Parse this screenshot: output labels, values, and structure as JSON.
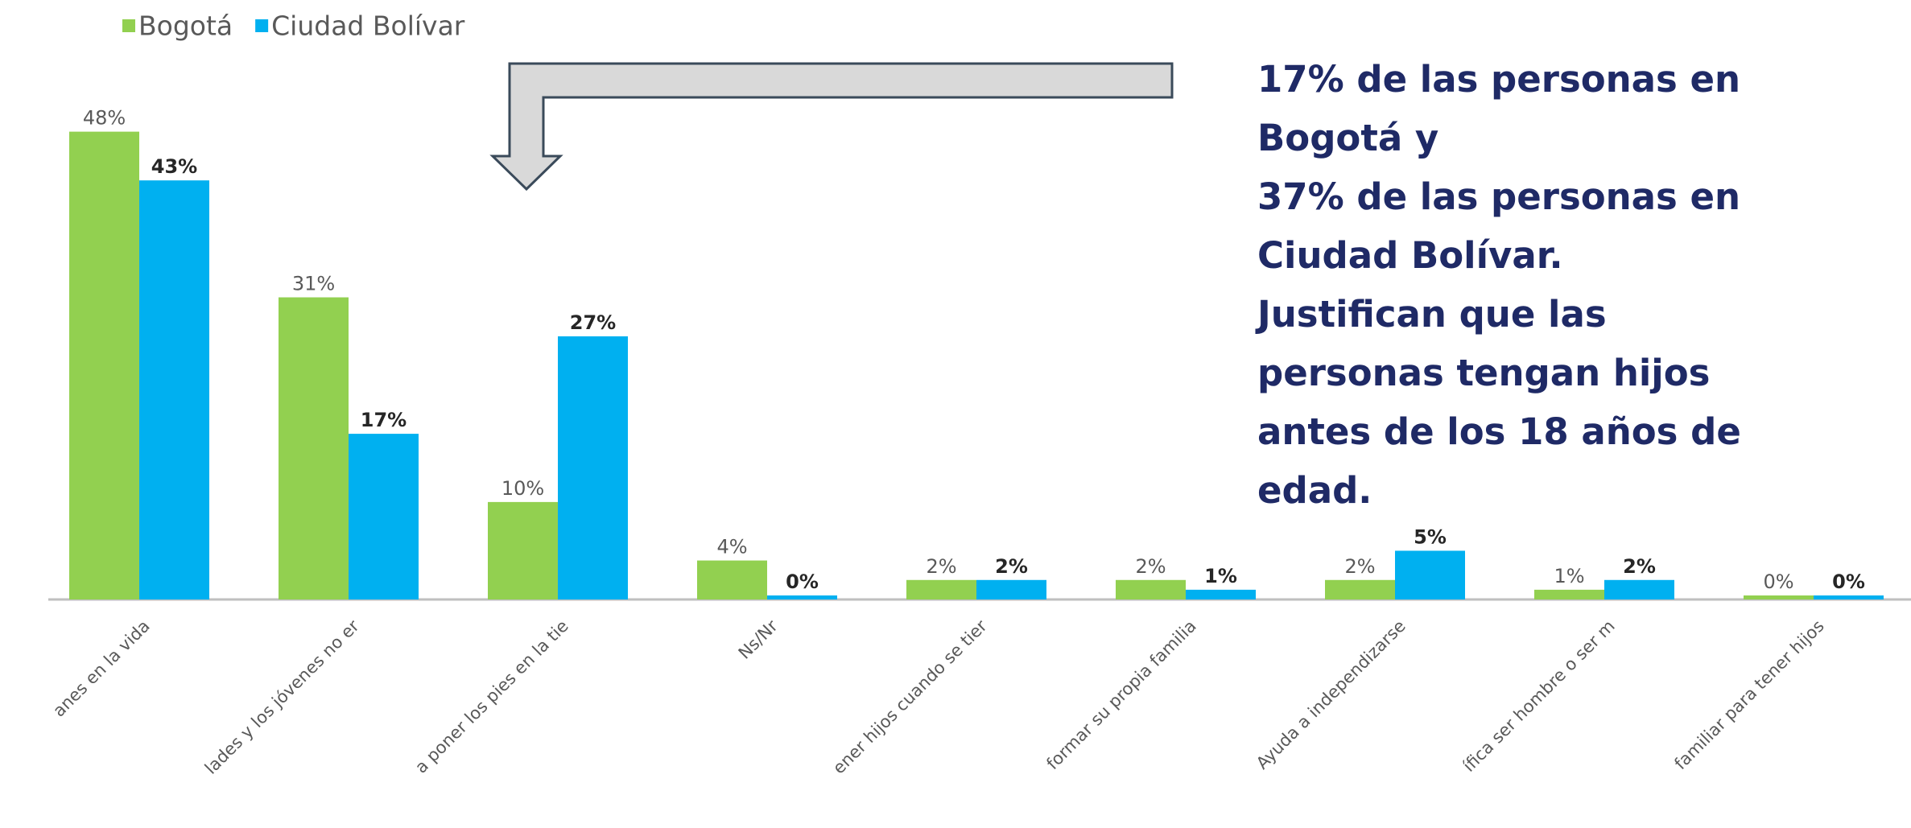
{
  "chart_data": {
    "type": "bar",
    "categories": [
      "anes en la vida",
      "lades y los jóvenes no er",
      "a poner los pies en la tie",
      "Ns/Nr",
      "ener hijos cuando se tier",
      "formar su propia familia",
      "Ayuda a independizarse",
      "ífica ser hombre o ser m",
      "familiar para tener hijos"
    ],
    "series": [
      {
        "name": "Bogotá",
        "color": "#92d050",
        "values": [
          48,
          31,
          10,
          4,
          2,
          2,
          2,
          1,
          0
        ],
        "value_labels": [
          "48%",
          "31%",
          "10%",
          "4%",
          "2%",
          "2%",
          "2%",
          "1%",
          "0%"
        ]
      },
      {
        "name": "Ciudad Bolívar",
        "color": "#00b0f0",
        "values": [
          43,
          17,
          27,
          0,
          2,
          1,
          5,
          2,
          0
        ],
        "value_labels": [
          "43%",
          "17%",
          "27%",
          "0%",
          "2%",
          "1%",
          "5%",
          "2%",
          "0%"
        ]
      }
    ],
    "legend": "top-left",
    "annotation": [
      "17% de las personas en",
      "Bogotá y",
      "37% de las personas en",
      "Ciudad Bolívar.",
      "Justifican que las",
      "personas tengan hijos",
      "antes de los 18 años de",
      "edad."
    ]
  }
}
